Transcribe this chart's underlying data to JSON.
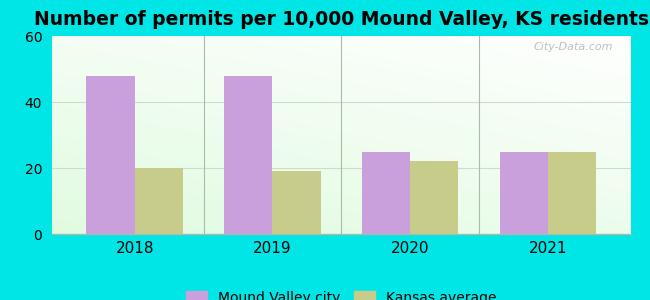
{
  "title": "Number of permits per 10,000 Mound Valley, KS residents",
  "years": [
    2018,
    2019,
    2020,
    2021
  ],
  "mound_valley": [
    48,
    48,
    25,
    25
  ],
  "kansas_avg": [
    20,
    19,
    22,
    25
  ],
  "bar_color_city": "#c9a0dc",
  "bar_color_ks": "#c8cc8a",
  "ylim": [
    0,
    60
  ],
  "yticks": [
    0,
    20,
    40,
    60
  ],
  "background_outer": "#00e5e5",
  "legend_city": "Mound Valley city",
  "legend_ks": "Kansas average",
  "bar_width": 0.35,
  "title_fontsize": 13.5,
  "watermark": "City-Data.com",
  "grid_color": "#ccddcc",
  "separator_color": "#aabbaa"
}
